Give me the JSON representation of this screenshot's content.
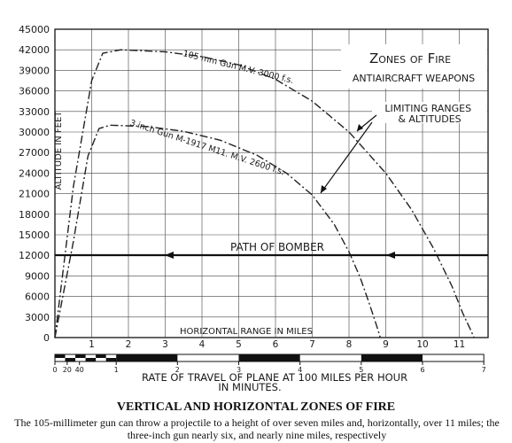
{
  "chart_data": {
    "type": "line",
    "title": "Zones of Fire",
    "subtitle": "Antiaircraft Weapons",
    "ylabel": "Altitude in Feet",
    "xlabel": "Horizontal Range in Miles",
    "ylim": [
      0,
      45000
    ],
    "xlim": [
      0,
      11.5
    ],
    "yticks": [
      "45000",
      "42000",
      "39000",
      "36000",
      "33000",
      "30000",
      "27000",
      "24000",
      "21000",
      "18000",
      "15000",
      "12000",
      "9000",
      "6000",
      "3000",
      "0"
    ],
    "xticks": [
      "1",
      "2",
      "3",
      "4",
      "5",
      "6",
      "7",
      "8",
      "9",
      "10",
      "11"
    ],
    "grid": true,
    "series": [
      {
        "name": "105 mm Gun M.V. 3000 f.s.",
        "x": [
          0,
          0.5,
          1.0,
          1.3,
          1.8,
          3,
          4,
          5,
          6,
          7,
          8,
          9,
          9.7,
          10.3,
          10.8,
          11.1,
          11.3,
          11.4
        ],
        "y": [
          0,
          22000,
          37500,
          41500,
          42000,
          41700,
          41000,
          39800,
          37700,
          34500,
          30000,
          24000,
          18700,
          13000,
          7500,
          3500,
          1200,
          0
        ]
      },
      {
        "name": "3 inch Gun M-1917 M11. M.V. 2600 f.s.",
        "x": [
          0,
          0.5,
          0.9,
          1.2,
          1.5,
          2.5,
          3.5,
          4.5,
          5.5,
          6.3,
          7.0,
          7.6,
          8.0,
          8.3,
          8.55,
          8.7,
          8.8,
          8.85
        ],
        "y": [
          0,
          14000,
          26500,
          30500,
          31000,
          30800,
          30100,
          28800,
          26600,
          24000,
          20800,
          16500,
          12500,
          8800,
          5000,
          2600,
          900,
          0
        ]
      }
    ],
    "annotations": {
      "limiting": "Limiting Ranges & Altitudes",
      "bomber_path": "Path of Bomber",
      "bomber_altitude": 12000
    },
    "secondary_axis": {
      "label": "Rate of Travel of Plane at 100 Miles per Hour in Minutes.",
      "label_line1": "Rate of Travel of Plane at 100 Miles per Hour",
      "label_line2": "in Minutes.",
      "ticks": [
        {
          "label": "0",
          "miles": 0
        },
        {
          "label": "20",
          "miles": 0.333
        },
        {
          "label": "40",
          "miles": 0.667
        },
        {
          "label": "1",
          "miles": 1.667
        },
        {
          "label": "2",
          "miles": 3.333
        },
        {
          "label": "3",
          "miles": 5.0
        },
        {
          "label": "4",
          "miles": 6.667
        },
        {
          "label": "5",
          "miles": 8.333
        },
        {
          "label": "6",
          "miles": 10.0
        },
        {
          "label": "7",
          "miles": 11.667
        }
      ]
    }
  },
  "caption": {
    "title": "VERTICAL AND HORIZONTAL ZONES OF FIRE",
    "text": "The 105-millimeter gun can throw a projectile to a height of over seven miles and, horizontally, over 11 miles; the three-inch gun nearly six, and nearly nine miles, respectively"
  }
}
